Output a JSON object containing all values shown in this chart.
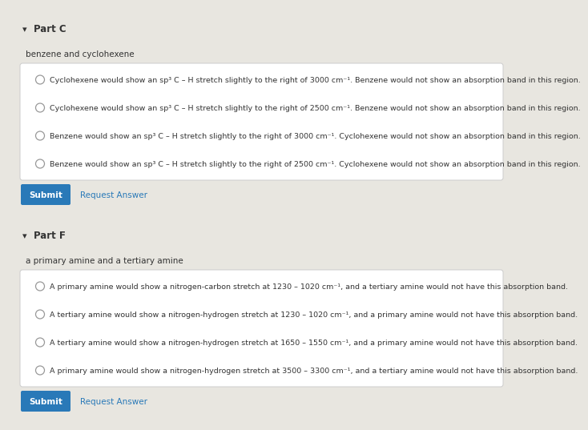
{
  "bg_color": "#e8e6e0",
  "box_color": "#ffffff",
  "part_c": {
    "part_label": "Part C",
    "subtitle": "benzene and cyclohexene",
    "options": [
      "Cyclohexene would show an sp³ C – H stretch slightly to the right of 3000 cm⁻¹. Benzene would not show an absorption band in this region.",
      "Cyclohexene would show an sp³ C – H stretch slightly to the right of 2500 cm⁻¹. Benzene would not show an absorption band in this region.",
      "Benzene would show an sp³ C – H stretch slightly to the right of 3000 cm⁻¹. Cyclohexene would not show an absorption band in this region.",
      "Benzene would show an sp³ C – H stretch slightly to the right of 2500 cm⁻¹. Cyclohexene would not show an absorption band in this region."
    ]
  },
  "part_f": {
    "part_label": "Part F",
    "subtitle": "a primary amine and a tertiary amine",
    "options": [
      "A primary amine would show a nitrogen-carbon stretch at 1230 – 1020 cm⁻¹, and a tertiary amine would not have this absorption band.",
      "A tertiary amine would show a nitrogen-hydrogen stretch at 1230 – 1020 cm⁻¹, and a primary amine would not have this absorption band.",
      "A tertiary amine would show a nitrogen-hydrogen stretch at 1650 – 1550 cm⁻¹, and a primary amine would not have this absorption band.",
      "A primary amine would show a nitrogen-hydrogen stretch at 3500 – 3300 cm⁻¹, and a tertiary amine would not have this absorption band."
    ]
  },
  "submit_bg": "#2979b8",
  "submit_fg": "#ffffff",
  "link_color": "#2979b8",
  "text_color": "#333333",
  "circle_color": "#999999",
  "border_color": "#cccccc",
  "triangle": "▾"
}
